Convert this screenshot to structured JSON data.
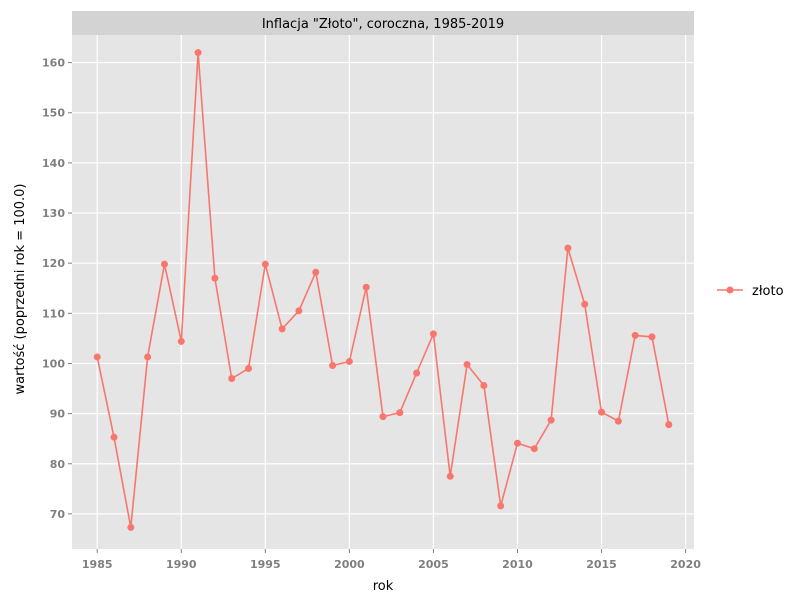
{
  "colors": {
    "panel_bg": "#e5e5e5",
    "strip_bg": "#d3d3d3",
    "grid": "#ffffff",
    "tick": "#7f7f7f",
    "series": "#f8766d"
  },
  "chart_data": {
    "type": "line",
    "title": "Inflacja \"Złoto\", coroczna, 1985-2019",
    "xlabel": "rok",
    "ylabel": "wartość (poprzedni rok = 100.0)",
    "xlim": [
      1983.5,
      2020.5
    ],
    "ylim": [
      63,
      165.5
    ],
    "xticks": [
      1985,
      1990,
      1995,
      2000,
      2005,
      2010,
      2015,
      2020
    ],
    "yticks": [
      70,
      80,
      90,
      100,
      110,
      120,
      130,
      140,
      150,
      160
    ],
    "grid": true,
    "legend_position": "right",
    "series": [
      {
        "name": "złoto",
        "x": [
          1985,
          1986,
          1987,
          1988,
          1989,
          1990,
          1991,
          1992,
          1993,
          1994,
          1995,
          1996,
          1997,
          1998,
          1999,
          2000,
          2001,
          2002,
          2003,
          2004,
          2005,
          2006,
          2007,
          2008,
          2009,
          2010,
          2011,
          2012,
          2013,
          2014,
          2015,
          2016,
          2017,
          2018,
          2019
        ],
        "y": [
          101.3,
          85.3,
          67.3,
          101.3,
          119.8,
          104.4,
          162.0,
          117.0,
          97.0,
          99.0,
          119.8,
          106.9,
          110.5,
          118.2,
          99.6,
          100.4,
          115.2,
          89.4,
          90.2,
          98.1,
          105.9,
          77.5,
          99.8,
          95.6,
          71.6,
          84.1,
          83.0,
          88.7,
          123.0,
          111.8,
          90.3,
          88.5,
          105.6,
          105.3,
          87.8
        ]
      }
    ]
  }
}
